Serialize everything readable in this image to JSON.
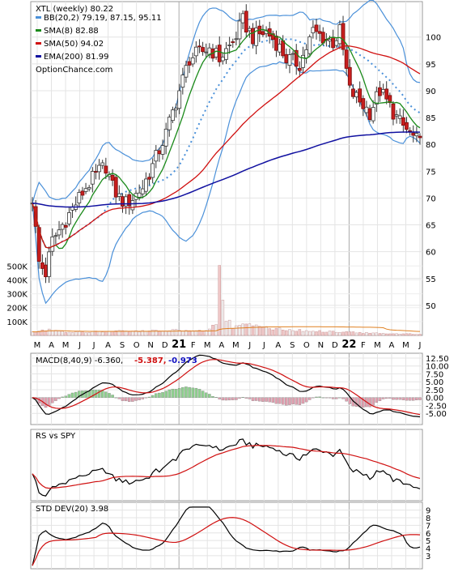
{
  "chart_data": {
    "type": "line",
    "ticker_label": "XTL (weekly) 80.22",
    "legend": [
      {
        "label": "BB(20,2) 79.19, 87.15, 95.11",
        "color": "#4a90d9"
      },
      {
        "label": "SMA(8) 82.88",
        "color": "#1a8a1a"
      },
      {
        "label": "SMA(50) 94.02",
        "color": "#d01010"
      },
      {
        "label": "EMA(200) 81.99",
        "color": "#1010a0"
      }
    ],
    "watermark": "OptionChance.com",
    "price_ticks": [
      100,
      95,
      90,
      85,
      80,
      75,
      70,
      65,
      60,
      55,
      50
    ],
    "price_ylim": [
      45,
      106
    ],
    "volume_ticks": [
      "500K",
      "400K",
      "300K",
      "200K",
      "100K"
    ],
    "volume_tick_values": [
      500000,
      400000,
      300000,
      200000,
      100000
    ],
    "volume_ylim": [
      0,
      560000
    ],
    "x_months": [
      "M",
      "A",
      "M",
      "J",
      "J",
      "A",
      "S",
      "O",
      "N",
      "D",
      "21",
      "F",
      "M",
      "A",
      "M",
      "J",
      "J",
      "A",
      "S",
      "O",
      "N",
      "D",
      "22",
      "F",
      "M",
      "A",
      "M",
      "J"
    ],
    "close_anchors": [
      [
        0,
        70
      ],
      [
        2,
        58
      ],
      [
        4,
        56
      ],
      [
        6,
        62
      ],
      [
        8,
        64
      ],
      [
        12,
        68
      ],
      [
        16,
        72
      ],
      [
        20,
        75
      ],
      [
        22,
        76
      ],
      [
        24,
        72
      ],
      [
        26,
        70
      ],
      [
        28,
        69
      ],
      [
        30,
        70
      ],
      [
        33,
        72
      ],
      [
        36,
        76
      ],
      [
        40,
        82
      ],
      [
        44,
        90
      ],
      [
        47,
        96
      ],
      [
        50,
        97
      ],
      [
        53,
        98
      ],
      [
        56,
        96
      ],
      [
        60,
        99
      ],
      [
        63,
        103
      ],
      [
        66,
        100
      ],
      [
        70,
        101
      ],
      [
        73,
        99
      ],
      [
        76,
        96
      ],
      [
        80,
        95
      ],
      [
        84,
        101
      ],
      [
        87,
        100
      ],
      [
        90,
        99
      ],
      [
        92,
        101
      ],
      [
        95,
        90
      ],
      [
        98,
        88
      ],
      [
        101,
        86
      ],
      [
        104,
        90
      ],
      [
        107,
        87
      ],
      [
        110,
        84
      ],
      [
        113,
        82
      ],
      [
        116,
        80
      ]
    ],
    "volume_anchors": [
      [
        0,
        30000
      ],
      [
        5,
        45000
      ],
      [
        10,
        25000
      ],
      [
        20,
        30000
      ],
      [
        40,
        40000
      ],
      [
        52,
        45000
      ],
      [
        55,
        90000
      ],
      [
        56,
        500000
      ],
      [
        58,
        140000
      ],
      [
        60,
        60000
      ],
      [
        65,
        90000
      ],
      [
        70,
        60000
      ],
      [
        80,
        40000
      ],
      [
        90,
        30000
      ],
      [
        100,
        20000
      ],
      [
        116,
        10000
      ]
    ],
    "macd": {
      "label": "MACD(8,40,9) -6.360,",
      "signal_value": "-5.387,",
      "signal_color": "#d01010",
      "hist_value": "-0.973",
      "hist_color": "#1010c0",
      "ticks": [
        "12.50",
        "10.00",
        "7.50",
        "5.00",
        "2.50",
        "0.00",
        "-2.50",
        "-5.00"
      ],
      "tick_values": [
        12.5,
        10,
        7.5,
        5,
        2.5,
        0,
        -2.5,
        -5
      ],
      "ylim": [
        -7.5,
        13
      ]
    },
    "rs": {
      "label": "RS vs SPY"
    },
    "std": {
      "label": "STD DEV(20) 3.98",
      "ticks": [
        "9",
        "8",
        "7",
        "6",
        "5",
        "4",
        "3"
      ],
      "tick_values": [
        9,
        8,
        7,
        6,
        5,
        4,
        3
      ],
      "ylim": [
        1.5,
        9.6
      ]
    }
  }
}
